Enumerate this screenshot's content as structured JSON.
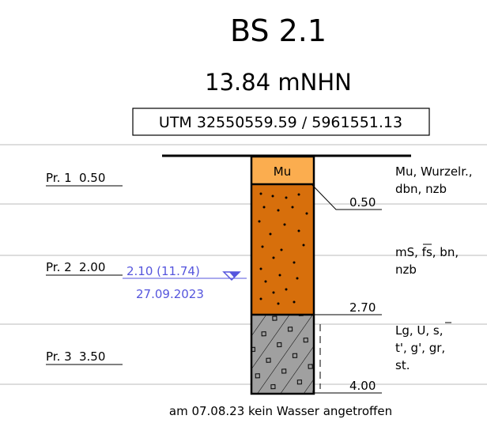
{
  "header": {
    "title": "BS 2.1",
    "elevation": "13.84 mNHN",
    "coordinates": "UTM 32550559.59 / 5961551.13"
  },
  "samples": [
    {
      "label": "Pr. 1",
      "depth": "0.50"
    },
    {
      "label": "Pr. 2",
      "depth": "2.00"
    },
    {
      "label": "Pr. 3",
      "depth": "3.50"
    }
  ],
  "layers": [
    {
      "symbol": "Mu",
      "bottom": "0.50",
      "description": [
        "Mu, Wurzelr.,",
        "dbn, nzb"
      ]
    },
    {
      "bottom": "2.70",
      "description": [
        "mS, fs, bn,",
        "nzb"
      ]
    },
    {
      "bottom": "4.00",
      "description": [
        "Lg, U, s,",
        "t', g', gr,",
        "st."
      ]
    }
  ],
  "water": {
    "level": "2.10 (11.74)",
    "date": "27.09.2023"
  },
  "footer": "am 07.08.23 kein Wasser angetroffen"
}
